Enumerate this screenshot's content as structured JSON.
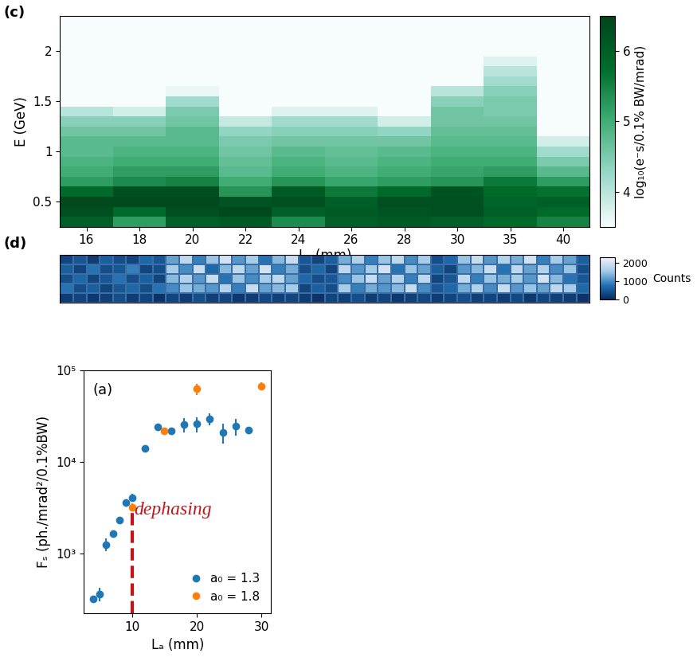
{
  "chart_data": [
    {
      "type": "heatmap",
      "title": "(c)",
      "xlabel": "Lₐ (mm)",
      "ylabel": "E (GeV)",
      "categories": [
        "16",
        "18",
        "20",
        "22",
        "24",
        "26",
        "28",
        "30",
        "35",
        "40"
      ],
      "y_bins": [
        0.25,
        0.35,
        0.45,
        0.55,
        0.65,
        0.75,
        0.85,
        0.95,
        1.05,
        1.15,
        1.25,
        1.35,
        1.45,
        1.55,
        1.65,
        1.75,
        1.85,
        1.95,
        2.05,
        2.15,
        2.25,
        2.35
      ],
      "ylim": [
        0.25,
        2.35
      ],
      "yticks": [
        0.5,
        1,
        1.5,
        2
      ],
      "cells": [
        [
          6.0,
          6.3,
          6.4,
          5.8,
          5.2,
          5.0,
          4.9,
          4.8,
          4.8,
          4.6,
          4.4,
          4.0,
          3.5,
          3.5,
          3.5,
          3.5,
          3.5,
          3.5,
          3.5,
          3.5,
          3.5
        ],
        [
          5.2,
          5.8,
          6.4,
          6.3,
          5.4,
          5.2,
          5.0,
          4.9,
          4.8,
          4.6,
          4.4,
          3.8,
          3.5,
          3.5,
          3.5,
          3.5,
          3.5,
          3.5,
          3.5,
          3.5,
          3.5
        ],
        [
          6.0,
          6.3,
          6.4,
          6.3,
          5.5,
          5.2,
          5.0,
          4.9,
          4.8,
          4.8,
          4.6,
          4.5,
          4.2,
          3.6,
          3.5,
          3.5,
          3.5,
          3.5,
          3.5,
          3.5,
          3.5
        ],
        [
          6.1,
          6.4,
          6.2,
          5.3,
          5.0,
          4.8,
          4.7,
          4.6,
          4.5,
          4.3,
          3.9,
          3.5,
          3.5,
          3.5,
          3.5,
          3.5,
          3.5,
          3.5,
          3.5,
          3.5,
          3.5
        ],
        [
          5.4,
          6.0,
          6.3,
          6.1,
          5.3,
          5.0,
          4.9,
          4.8,
          4.6,
          4.4,
          4.2,
          3.7,
          3.5,
          3.5,
          3.5,
          3.5,
          3.5,
          3.5,
          3.5,
          3.5,
          3.5
        ],
        [
          6.0,
          6.1,
          6.0,
          5.6,
          5.1,
          4.9,
          4.8,
          4.7,
          4.6,
          4.4,
          4.2,
          3.7,
          3.5,
          3.5,
          3.5,
          3.5,
          3.5,
          3.5,
          3.5,
          3.5,
          3.5
        ],
        [
          6.1,
          6.2,
          6.3,
          5.8,
          5.2,
          5.0,
          4.9,
          4.8,
          4.6,
          4.3,
          3.8,
          3.5,
          3.5,
          3.5,
          3.5,
          3.5,
          3.5,
          3.5,
          3.5,
          3.5,
          3.5
        ],
        [
          6.0,
          6.3,
          6.3,
          6.2,
          5.3,
          5.1,
          5.0,
          4.9,
          4.8,
          4.7,
          4.6,
          4.6,
          4.4,
          4.0,
          3.5,
          3.5,
          3.5,
          3.5,
          3.5,
          3.5,
          3.5
        ],
        [
          5.8,
          6.0,
          5.9,
          5.8,
          5.6,
          5.2,
          5.0,
          4.9,
          4.8,
          4.7,
          4.6,
          4.5,
          4.5,
          4.4,
          4.2,
          4.0,
          3.7,
          3.5,
          3.5,
          3.5,
          3.5
        ],
        [
          5.5,
          5.8,
          6.0,
          5.7,
          5.2,
          4.8,
          4.5,
          4.2,
          3.8,
          3.5,
          3.5,
          3.5,
          3.5,
          3.5,
          3.5,
          3.5,
          3.5,
          3.5,
          3.5,
          3.5,
          3.5
        ]
      ],
      "colorbar_label": "log₁₀(e⁻s/0.1% BW/mrad)",
      "colorbar_lim": [
        3.5,
        6.5
      ],
      "colorbar_ticks": [
        4,
        5,
        6
      ]
    },
    {
      "type": "heatmap",
      "title": "(d)",
      "tick_labels": false,
      "cells": [
        [
          300,
          500,
          200,
          600,
          400,
          300,
          700,
          500,
          1200,
          1800,
          900,
          1500,
          2000,
          1100,
          1600,
          800,
          1400,
          1900,
          500,
          300,
          600,
          1300,
          1700,
          900,
          1500,
          1800,
          1000,
          1600,
          400,
          700,
          1500,
          1900,
          1100,
          1700,
          1300,
          2000,
          900,
          1600,
          1200,
          600
        ],
        [
          600,
          300,
          800,
          400,
          500,
          900,
          300,
          400,
          1600,
          1000,
          1900,
          700,
          1400,
          1800,
          1200,
          2000,
          900,
          1300,
          400,
          700,
          300,
          1800,
          1100,
          1600,
          2000,
          800,
          1500,
          1200,
          600,
          300,
          1100,
          1400,
          1900,
          800,
          1800,
          1200,
          1700,
          1000,
          1500,
          400
        ],
        [
          400,
          700,
          300,
          500,
          800,
          400,
          600,
          300,
          1400,
          1700,
          1100,
          1900,
          800,
          1500,
          1000,
          1600,
          1800,
          1200,
          700,
          400,
          500,
          1000,
          1500,
          1900,
          1200,
          1700,
          900,
          1800,
          300,
          500,
          1800,
          900,
          1500,
          1300,
          1600,
          1100,
          2000,
          1400,
          800,
          500
        ],
        [
          800,
          400,
          600,
          300,
          500,
          700,
          400,
          800,
          1000,
          1500,
          1300,
          1100,
          1700,
          900,
          1900,
          1200,
          1400,
          1600,
          300,
          600,
          400,
          1600,
          900,
          1300,
          1100,
          1400,
          1900,
          1000,
          500,
          700,
          1300,
          1700,
          1000,
          1900,
          1100,
          1500,
          1200,
          1800,
          1600,
          700
        ],
        [
          200,
          300,
          150,
          250,
          400,
          200,
          300,
          100,
          300,
          200,
          400,
          250,
          300,
          150,
          200,
          350,
          250,
          300,
          200,
          100,
          300,
          250,
          400,
          200,
          300,
          150,
          250,
          350,
          200,
          300,
          400,
          250,
          300,
          200,
          350,
          150,
          300,
          250,
          200,
          100
        ]
      ],
      "colorbar_label": "Counts",
      "colorbar_lim": [
        0,
        2300
      ],
      "colorbar_ticks": [
        0,
        1000,
        2000
      ]
    },
    {
      "type": "scatter",
      "title": "(a)",
      "xlabel": "Lₐ (mm)",
      "ylabel": "Fₛ (ph./mrad²/0.1%BW)",
      "log": "y",
      "xlim": [
        2.5,
        31.5
      ],
      "xticks": [
        10,
        20,
        30
      ],
      "ylim": [
        220,
        100000
      ],
      "yticks": [
        {
          "value": 1000,
          "label": "10³"
        },
        {
          "value": 10000,
          "label": "10⁴"
        },
        {
          "value": 100000,
          "label": "10⁵"
        }
      ],
      "legend": "lower right",
      "series": [
        {
          "name": "a₀ = 1.3",
          "color": "#1f77b4",
          "marker": "o",
          "x": [
            4,
            5,
            6,
            7,
            8,
            9,
            10,
            12,
            14,
            16,
            18,
            20,
            22,
            24,
            26,
            28
          ],
          "values": [
            320,
            360,
            1250,
            1650,
            2300,
            3600,
            4100,
            14000,
            24000,
            22000,
            25500,
            26000,
            29500,
            21000,
            24500,
            22500
          ],
          "errors": [
            20,
            60,
            200,
            100,
            120,
            250,
            350,
            600,
            1500,
            1800,
            4500,
            5000,
            4500,
            5000,
            5000,
            1000
          ]
        },
        {
          "name": "a₀ = 1.8",
          "color": "#ff7f0e",
          "marker": "o",
          "x": [
            10,
            15,
            20,
            30
          ],
          "values": [
            3200,
            22000,
            63000,
            68000
          ],
          "errors": [
            300,
            1500,
            9000,
            6000
          ]
        }
      ],
      "annotations": [
        {
          "text": "dephasing",
          "x": 10,
          "y": 3000,
          "color": "#c0141a",
          "line_style": "dashed"
        }
      ]
    }
  ]
}
